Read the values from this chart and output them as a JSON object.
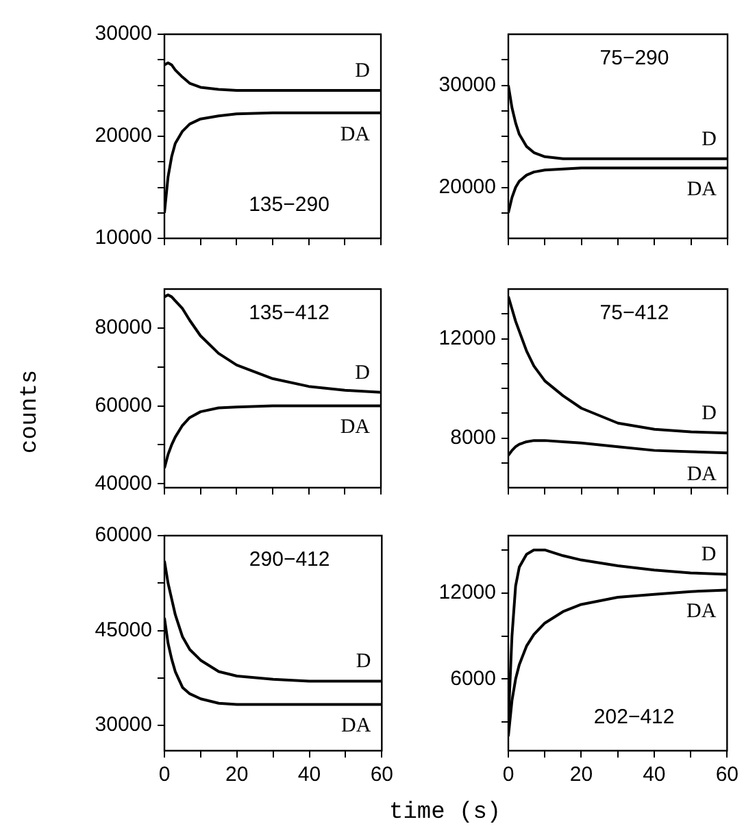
{
  "chart_data": [
    {
      "type": "line",
      "title": "135−290",
      "x": [
        0,
        1,
        2,
        3,
        5,
        7,
        10,
        15,
        20,
        30,
        40,
        50,
        60
      ],
      "marker": "none",
      "tick_labels": "y",
      "xlim": [
        0,
        60
      ],
      "xticks": [
        0,
        {
          "value": 10,
          "label": null
        },
        20,
        {
          "value": 30,
          "label": null
        },
        40,
        {
          "value": 50,
          "label": null
        },
        60
      ],
      "ylim": [
        10000,
        30000
      ],
      "yticks": [
        10000,
        {
          "value": 12500,
          "label": null
        },
        {
          "value": 15000,
          "label": null
        },
        {
          "value": 17500,
          "label": null
        },
        20000,
        {
          "value": 22500,
          "label": null
        },
        {
          "value": 25000,
          "label": null
        },
        {
          "value": 27500,
          "label": null
        },
        30000
      ],
      "series": [
        {
          "name": "D",
          "color": "#000000",
          "values": [
            27000,
            27200,
            27000,
            26500,
            25800,
            25200,
            24800,
            24600,
            24500,
            24500,
            24500,
            24500,
            24500
          ]
        },
        {
          "name": "DA",
          "color": "#000000",
          "values": [
            12500,
            16000,
            18000,
            19300,
            20500,
            21200,
            21700,
            22000,
            22200,
            22300,
            22300,
            22300,
            22300
          ]
        }
      ]
    },
    {
      "type": "line",
      "title": "75−290",
      "x": [
        0,
        1,
        2,
        3,
        5,
        7,
        10,
        15,
        20,
        30,
        40,
        50,
        60
      ],
      "marker": "none",
      "tick_labels": "y",
      "xlim": [
        0,
        60
      ],
      "xticks": [
        0,
        {
          "value": 10,
          "label": null
        },
        20,
        {
          "value": 30,
          "label": null
        },
        40,
        {
          "value": 50,
          "label": null
        },
        60
      ],
      "ylim": [
        15000,
        35000
      ],
      "yticks": [
        {
          "value": 17500,
          "label": null
        },
        20000,
        {
          "value": 22500,
          "label": null
        },
        {
          "value": 25000,
          "label": null
        },
        {
          "value": 27500,
          "label": null
        },
        30000,
        {
          "value": 32500,
          "label": null
        }
      ],
      "series": [
        {
          "name": "D",
          "color": "#000000",
          "values": [
            30000,
            27800,
            26300,
            25200,
            24000,
            23400,
            23000,
            22800,
            22800,
            22800,
            22800,
            22800,
            22800
          ]
        },
        {
          "name": "DA",
          "color": "#000000",
          "values": [
            17500,
            19000,
            20000,
            20600,
            21200,
            21500,
            21700,
            21800,
            21900,
            21900,
            21900,
            21900,
            21900
          ]
        }
      ]
    },
    {
      "type": "line",
      "title": "135−412",
      "ylabel": "counts",
      "x": [
        0,
        1,
        2,
        3,
        5,
        7,
        10,
        15,
        20,
        30,
        40,
        50,
        60
      ],
      "marker": "none",
      "tick_labels": "y",
      "xlim": [
        0,
        60
      ],
      "xticks": [
        0,
        {
          "value": 10,
          "label": null
        },
        20,
        {
          "value": 30,
          "label": null
        },
        40,
        {
          "value": 50,
          "label": null
        },
        60
      ],
      "ylim": [
        39000,
        90000
      ],
      "yticks": [
        40000,
        {
          "value": 50000,
          "label": null
        },
        60000,
        {
          "value": 70000,
          "label": null
        },
        80000
      ],
      "series": [
        {
          "name": "D",
          "color": "#000000",
          "values": [
            88000,
            88500,
            88000,
            87000,
            85000,
            82000,
            78000,
            73500,
            70500,
            67000,
            65000,
            64000,
            63500
          ]
        },
        {
          "name": "DA",
          "color": "#000000",
          "values": [
            44000,
            47500,
            50000,
            52000,
            55000,
            57000,
            58500,
            59500,
            59700,
            60000,
            60000,
            60000,
            60000
          ]
        }
      ]
    },
    {
      "type": "line",
      "title": "75−412",
      "x": [
        0,
        1,
        2,
        3,
        5,
        7,
        10,
        15,
        20,
        30,
        40,
        50,
        60
      ],
      "marker": "none",
      "tick_labels": "y",
      "xlim": [
        0,
        60
      ],
      "xticks": [
        0,
        {
          "value": 10,
          "label": null
        },
        20,
        {
          "value": 30,
          "label": null
        },
        40,
        {
          "value": 50,
          "label": null
        },
        60
      ],
      "ylim": [
        6000,
        14000
      ],
      "yticks": [
        {
          "value": 7000,
          "label": null
        },
        8000,
        {
          "value": 9000,
          "label": null
        },
        {
          "value": 10000,
          "label": null
        },
        {
          "value": 11000,
          "label": null
        },
        12000,
        {
          "value": 13000,
          "label": null
        }
      ],
      "series": [
        {
          "name": "D",
          "color": "#000000",
          "values": [
            13700,
            13200,
            12700,
            12300,
            11500,
            10900,
            10300,
            9700,
            9200,
            8600,
            8350,
            8250,
            8200
          ]
        },
        {
          "name": "DA",
          "color": "#000000",
          "values": [
            7300,
            7500,
            7650,
            7750,
            7850,
            7900,
            7900,
            7850,
            7800,
            7650,
            7500,
            7450,
            7400
          ]
        }
      ]
    },
    {
      "type": "line",
      "title": "290−412",
      "xlabel": "time (s)",
      "x": [
        0,
        1,
        2,
        3,
        5,
        7,
        10,
        15,
        20,
        30,
        40,
        50,
        60
      ],
      "marker": "none",
      "xlim": [
        0,
        60
      ],
      "xticks": [
        0,
        {
          "value": 10,
          "label": null
        },
        20,
        {
          "value": 30,
          "label": null
        },
        40,
        {
          "value": 50,
          "label": null
        },
        60
      ],
      "ylim": [
        26000,
        60000
      ],
      "yticks": [
        30000,
        {
          "value": 37500,
          "label": null
        },
        45000,
        {
          "value": 52500,
          "label": null
        },
        60000
      ],
      "series": [
        {
          "name": "D",
          "color": "#000000",
          "values": [
            56000,
            52500,
            50000,
            47500,
            44000,
            42000,
            40300,
            38500,
            37800,
            37300,
            37000,
            37000,
            37000
          ]
        },
        {
          "name": "DA",
          "color": "#000000",
          "values": [
            47000,
            43000,
            40500,
            38500,
            36000,
            35000,
            34200,
            33500,
            33300,
            33300,
            33300,
            33300,
            33300
          ]
        }
      ]
    },
    {
      "type": "line",
      "title": "202−412",
      "x": [
        0,
        1,
        2,
        3,
        5,
        7,
        10,
        15,
        20,
        30,
        40,
        50,
        60
      ],
      "marker": "none",
      "xlim": [
        0,
        60
      ],
      "xticks": [
        0,
        {
          "value": 10,
          "label": null
        },
        20,
        {
          "value": 30,
          "label": null
        },
        40,
        {
          "value": 50,
          "label": null
        },
        60
      ],
      "ylim": [
        1000,
        16000
      ],
      "yticks": [
        {
          "value": 3000,
          "label": null
        },
        6000,
        {
          "value": 9000,
          "label": null
        },
        12000,
        {
          "value": 15000,
          "label": null
        }
      ],
      "series": [
        {
          "name": "D",
          "color": "#000000",
          "values": [
            3000,
            9000,
            12500,
            13800,
            14700,
            15000,
            15000,
            14600,
            14300,
            13900,
            13600,
            13400,
            13300
          ]
        },
        {
          "name": "DA",
          "color": "#000000",
          "values": [
            2000,
            4500,
            6000,
            7000,
            8300,
            9100,
            9900,
            10700,
            11200,
            11700,
            11900,
            12100,
            12200
          ]
        }
      ]
    }
  ]
}
